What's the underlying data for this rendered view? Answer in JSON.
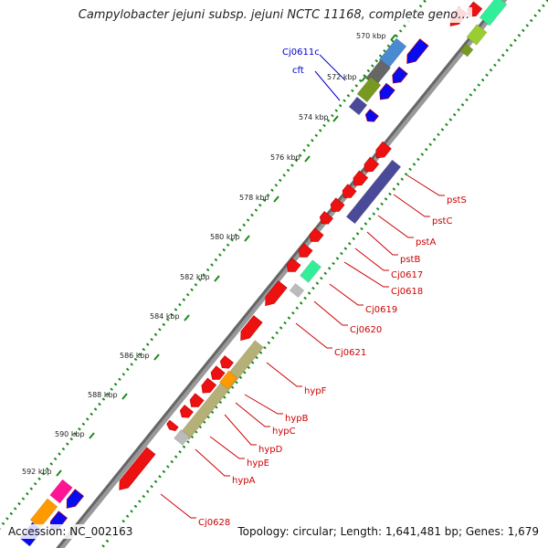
{
  "title": "Campylobacter jejuni subsp. jejuni NCTC 11168, complete geno…",
  "accession": "Accession: NC_002163",
  "topology": "Topology: circular; Length: 1,641,481 bp; Genes: 1,679",
  "kbp_ticks": [
    "570 kbp",
    "572 kbp",
    "574 kbp",
    "576 kbp",
    "578 kbp",
    "580 kbp",
    "582 kbp",
    "584 kbp",
    "586 kbp",
    "588 kbp",
    "590 kbp",
    "592 kbp"
  ],
  "gene_labels_blue": [
    "Cj0611c",
    "cft"
  ],
  "gene_labels_red": [
    "pstS",
    "pstC",
    "pstA",
    "pstB",
    "Cj0617",
    "Cj0618",
    "Cj0619",
    "Cj0620",
    "Cj0621",
    "hypF",
    "hypB",
    "hypC",
    "hypD",
    "hypE",
    "hypA",
    "Cj0628"
  ],
  "colors": {
    "cds": "#ee1111",
    "blue_track": "#0a0aee",
    "purple_track": "#4a4a99",
    "olive_track": "#b5b078",
    "teal_track": "#33ee99",
    "label_red": "#cc0000",
    "label_blue": "#0000cc",
    "ring": "#1a8a1a"
  }
}
